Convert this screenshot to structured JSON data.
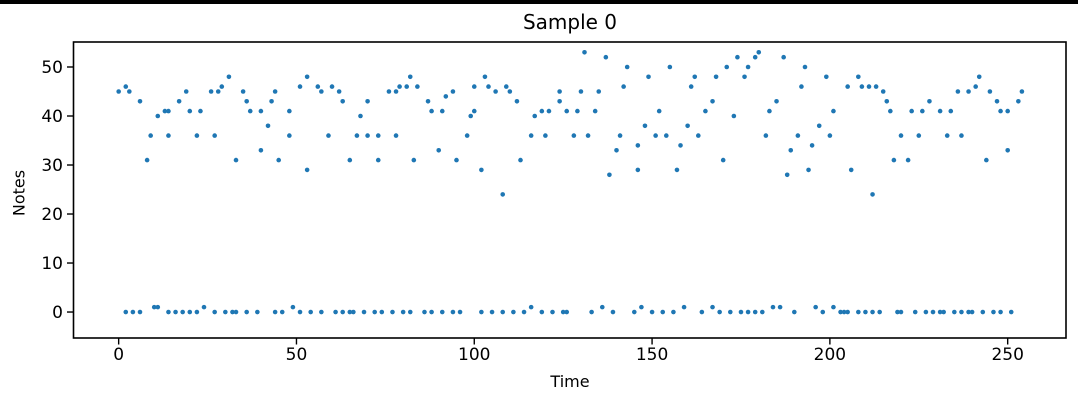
{
  "window": {
    "top_edge_color": "#000000",
    "background_color": "#ffffff"
  },
  "chart_data": {
    "type": "scatter",
    "title": "Sample 0",
    "xlabel": "Time",
    "ylabel": "Notes",
    "xlim": [
      -12.7,
      266.4
    ],
    "ylim": [
      -5.3,
      55.1
    ],
    "xticks": [
      0,
      50,
      100,
      150,
      200,
      250
    ],
    "yticks": [
      0,
      10,
      20,
      30,
      40,
      50
    ],
    "grid": false,
    "legend": null,
    "marker": {
      "color": "#1f77b4",
      "radius": 2.3
    },
    "axis_color": "#000000",
    "points": [
      [
        0,
        45
      ],
      [
        2,
        46
      ],
      [
        3,
        45
      ],
      [
        6,
        43
      ],
      [
        8,
        31
      ],
      [
        9,
        36
      ],
      [
        11,
        40
      ],
      [
        13,
        41
      ],
      [
        14,
        41
      ],
      [
        14,
        36
      ],
      [
        17,
        43
      ],
      [
        19,
        45
      ],
      [
        20,
        41
      ],
      [
        22,
        36
      ],
      [
        23,
        41
      ],
      [
        26,
        45
      ],
      [
        27,
        36
      ],
      [
        28,
        45
      ],
      [
        29,
        46
      ],
      [
        31,
        48
      ],
      [
        33,
        31
      ],
      [
        35,
        45
      ],
      [
        36,
        43
      ],
      [
        37,
        41
      ],
      [
        40,
        41
      ],
      [
        40,
        33
      ],
      [
        42,
        38
      ],
      [
        43,
        43
      ],
      [
        44,
        45
      ],
      [
        45,
        31
      ],
      [
        48,
        41
      ],
      [
        48,
        36
      ],
      [
        51,
        46
      ],
      [
        53,
        48
      ],
      [
        53,
        29
      ],
      [
        56,
        46
      ],
      [
        57,
        45
      ],
      [
        59,
        36
      ],
      [
        60,
        46
      ],
      [
        62,
        45
      ],
      [
        63,
        43
      ],
      [
        65,
        31
      ],
      [
        67,
        36
      ],
      [
        68,
        40
      ],
      [
        70,
        43
      ],
      [
        70,
        36
      ],
      [
        73,
        36
      ],
      [
        73,
        31
      ],
      [
        76,
        45
      ],
      [
        78,
        45
      ],
      [
        78,
        36
      ],
      [
        79,
        46
      ],
      [
        81,
        46
      ],
      [
        82,
        48
      ],
      [
        83,
        31
      ],
      [
        84,
        46
      ],
      [
        87,
        43
      ],
      [
        88,
        41
      ],
      [
        90,
        33
      ],
      [
        91,
        41
      ],
      [
        92,
        44
      ],
      [
        94,
        45
      ],
      [
        95,
        31
      ],
      [
        98,
        36
      ],
      [
        99,
        40
      ],
      [
        100,
        41
      ],
      [
        100,
        46
      ],
      [
        102,
        29
      ],
      [
        103,
        48
      ],
      [
        104,
        46
      ],
      [
        106,
        45
      ],
      [
        108,
        24
      ],
      [
        109,
        46
      ],
      [
        110,
        45
      ],
      [
        112,
        43
      ],
      [
        113,
        31
      ],
      [
        116,
        36
      ],
      [
        117,
        40
      ],
      [
        119,
        41
      ],
      [
        120,
        36
      ],
      [
        121,
        41
      ],
      [
        124,
        43
      ],
      [
        124,
        45
      ],
      [
        126,
        41
      ],
      [
        128,
        36
      ],
      [
        129,
        41
      ],
      [
        130,
        45
      ],
      [
        131,
        53
      ],
      [
        132,
        36
      ],
      [
        134,
        41
      ],
      [
        135,
        45
      ],
      [
        137,
        52
      ],
      [
        138,
        28
      ],
      [
        140,
        33
      ],
      [
        141,
        36
      ],
      [
        142,
        46
      ],
      [
        143,
        50
      ],
      [
        146,
        29
      ],
      [
        146,
        34
      ],
      [
        148,
        38
      ],
      [
        149,
        48
      ],
      [
        151,
        36
      ],
      [
        152,
        41
      ],
      [
        154,
        36
      ],
      [
        155,
        50
      ],
      [
        157,
        29
      ],
      [
        158,
        34
      ],
      [
        160,
        38
      ],
      [
        161,
        46
      ],
      [
        162,
        48
      ],
      [
        163,
        36
      ],
      [
        165,
        41
      ],
      [
        167,
        43
      ],
      [
        168,
        48
      ],
      [
        170,
        31
      ],
      [
        171,
        50
      ],
      [
        173,
        40
      ],
      [
        174,
        52
      ],
      [
        176,
        48
      ],
      [
        177,
        50
      ],
      [
        179,
        52
      ],
      [
        180,
        53
      ],
      [
        182,
        36
      ],
      [
        183,
        41
      ],
      [
        185,
        43
      ],
      [
        187,
        52
      ],
      [
        188,
        28
      ],
      [
        189,
        33
      ],
      [
        191,
        36
      ],
      [
        192,
        46
      ],
      [
        193,
        50
      ],
      [
        194,
        29
      ],
      [
        195,
        34
      ],
      [
        197,
        38
      ],
      [
        199,
        48
      ],
      [
        200,
        36
      ],
      [
        201,
        41
      ],
      [
        205,
        46
      ],
      [
        206,
        29
      ],
      [
        208,
        48
      ],
      [
        209,
        46
      ],
      [
        211,
        46
      ],
      [
        212,
        24
      ],
      [
        213,
        46
      ],
      [
        215,
        45
      ],
      [
        216,
        43
      ],
      [
        217,
        41
      ],
      [
        218,
        31
      ],
      [
        220,
        36
      ],
      [
        222,
        31
      ],
      [
        223,
        41
      ],
      [
        225,
        36
      ],
      [
        226,
        41
      ],
      [
        228,
        43
      ],
      [
        231,
        41
      ],
      [
        233,
        36
      ],
      [
        234,
        41
      ],
      [
        236,
        45
      ],
      [
        237,
        36
      ],
      [
        239,
        45
      ],
      [
        241,
        46
      ],
      [
        242,
        48
      ],
      [
        244,
        31
      ],
      [
        245,
        45
      ],
      [
        247,
        43
      ],
      [
        248,
        41
      ],
      [
        250,
        33
      ],
      [
        250,
        41
      ],
      [
        253,
        43
      ],
      [
        254,
        45
      ],
      [
        2,
        0
      ],
      [
        4,
        0
      ],
      [
        6,
        0
      ],
      [
        10,
        1
      ],
      [
        11,
        1
      ],
      [
        14,
        0
      ],
      [
        16,
        0
      ],
      [
        18,
        0
      ],
      [
        20,
        0
      ],
      [
        22,
        0
      ],
      [
        24,
        1
      ],
      [
        27,
        0
      ],
      [
        30,
        0
      ],
      [
        32,
        0
      ],
      [
        33,
        0
      ],
      [
        36,
        0
      ],
      [
        39,
        0
      ],
      [
        44,
        0
      ],
      [
        46,
        0
      ],
      [
        49,
        1
      ],
      [
        51,
        0
      ],
      [
        54,
        0
      ],
      [
        57,
        0
      ],
      [
        61,
        0
      ],
      [
        63,
        0
      ],
      [
        65,
        0
      ],
      [
        66,
        0
      ],
      [
        69,
        0
      ],
      [
        72,
        0
      ],
      [
        74,
        0
      ],
      [
        77,
        0
      ],
      [
        80,
        0
      ],
      [
        82,
        0
      ],
      [
        86,
        0
      ],
      [
        88,
        0
      ],
      [
        91,
        0
      ],
      [
        94,
        0
      ],
      [
        96,
        0
      ],
      [
        102,
        0
      ],
      [
        105,
        0
      ],
      [
        108,
        0
      ],
      [
        111,
        0
      ],
      [
        114,
        0
      ],
      [
        116,
        1
      ],
      [
        119,
        0
      ],
      [
        122,
        0
      ],
      [
        125,
        0
      ],
      [
        126,
        0
      ],
      [
        133,
        0
      ],
      [
        136,
        1
      ],
      [
        139,
        0
      ],
      [
        145,
        0
      ],
      [
        147,
        1
      ],
      [
        150,
        0
      ],
      [
        153,
        0
      ],
      [
        156,
        0
      ],
      [
        159,
        1
      ],
      [
        164,
        0
      ],
      [
        167,
        1
      ],
      [
        169,
        0
      ],
      [
        172,
        0
      ],
      [
        175,
        0
      ],
      [
        177,
        0
      ],
      [
        179,
        0
      ],
      [
        181,
        0
      ],
      [
        184,
        1
      ],
      [
        186,
        1
      ],
      [
        190,
        0
      ],
      [
        196,
        1
      ],
      [
        198,
        0
      ],
      [
        201,
        1
      ],
      [
        203,
        0
      ],
      [
        204,
        0
      ],
      [
        205,
        0
      ],
      [
        208,
        0
      ],
      [
        210,
        0
      ],
      [
        212,
        0
      ],
      [
        214,
        0
      ],
      [
        219,
        0
      ],
      [
        220,
        0
      ],
      [
        224,
        0
      ],
      [
        227,
        0
      ],
      [
        229,
        0
      ],
      [
        231,
        0
      ],
      [
        232,
        0
      ],
      [
        235,
        0
      ],
      [
        237,
        0
      ],
      [
        239,
        0
      ],
      [
        240,
        0
      ],
      [
        243,
        0
      ],
      [
        246,
        0
      ],
      [
        248,
        0
      ],
      [
        251,
        0
      ]
    ]
  }
}
